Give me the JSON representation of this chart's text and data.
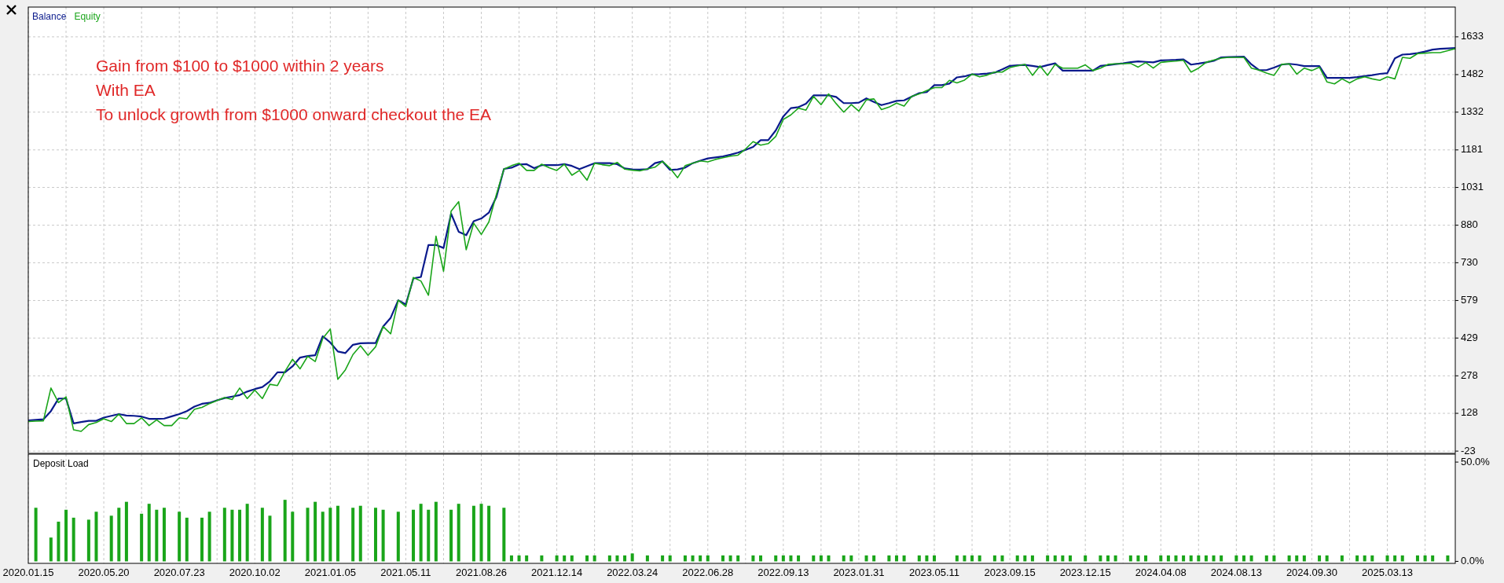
{
  "chart_data": [
    {
      "type": "line",
      "legend": "top left",
      "grid": true,
      "tick_labels": "y",
      "annotations": [
        "Gain from $100 to $1000 within 2 years",
        "With EA",
        "To unlock growth from $1000 onward checkout the EA"
      ],
      "categories": [
        "2020.01.15",
        null,
        null,
        null,
        null,
        null,
        null,
        null,
        null,
        null,
        "2020.05.20",
        null,
        null,
        null,
        null,
        null,
        null,
        null,
        null,
        null,
        "2020.07.23",
        null,
        null,
        null,
        null,
        null,
        null,
        null,
        null,
        null,
        "2020.10.02",
        null,
        null,
        null,
        null,
        null,
        null,
        null,
        null,
        null,
        "2021.01.05",
        null,
        null,
        null,
        null,
        null,
        null,
        null,
        null,
        null,
        "2021.05.11",
        null,
        null,
        null,
        null,
        null,
        null,
        null,
        null,
        null,
        "2021.08.26",
        null,
        null,
        null,
        null,
        null,
        null,
        null,
        null,
        null,
        "2021.12.14",
        null,
        null,
        null,
        null,
        null,
        null,
        null,
        null,
        null,
        "2022.03.24",
        null,
        null,
        null,
        null,
        null,
        null,
        null,
        null,
        null,
        "2022.06.28",
        null,
        null,
        null,
        null,
        null,
        null,
        null,
        null,
        null,
        "2022.09.13",
        null,
        null,
        null,
        null,
        null,
        null,
        null,
        null,
        null,
        "2023.01.31",
        null,
        null,
        null,
        null,
        null,
        null,
        null,
        null,
        null,
        "2023.05.11",
        null,
        null,
        null,
        null,
        null,
        null,
        null,
        null,
        null,
        "2023.09.15",
        null,
        null,
        null,
        null,
        null,
        null,
        null,
        null,
        null,
        "2023.12.15",
        null,
        null,
        null,
        null,
        null,
        null,
        null,
        null,
        null,
        "2024.04.08",
        null,
        null,
        null,
        null,
        null,
        null,
        null,
        null,
        null,
        "2024.08.13",
        null,
        null,
        null,
        null,
        null,
        null,
        null,
        null,
        null,
        "2024.09.30",
        null,
        null,
        null,
        null,
        null,
        null,
        null,
        null,
        null,
        "2025.03.13",
        null,
        null,
        null,
        null,
        null,
        null,
        null,
        null,
        null
      ],
      "ylim": [
        -32,
        1752
      ],
      "yticks": [
        -23,
        128,
        278,
        429,
        579,
        730,
        880,
        1031,
        1181,
        1332,
        1482,
        1633
      ],
      "series": [
        {
          "name": "Equity",
          "color": "#1aa51a",
          "values": [
            95,
            97,
            98,
            229,
            171,
            194,
            62,
            56,
            83,
            91,
            106,
            95,
            125,
            87,
            87,
            110,
            79,
            102,
            79,
            79,
            110,
            106,
            144,
            152,
            167,
            179,
            191,
            183,
            229,
            187,
            221,
            187,
            244,
            239,
            296,
            344,
            306,
            356,
            335,
            427,
            465,
            264,
            302,
            363,
            398,
            360,
            394,
            475,
            446,
            580,
            555,
            671,
            657,
            600,
            836,
            696,
            936,
            974,
            782,
            888,
            843,
            893,
            1003,
            1104,
            1118,
            1128,
            1099,
            1099,
            1124,
            1110,
            1099,
            1124,
            1080,
            1099,
            1060,
            1128,
            1122,
            1118,
            1131,
            1104,
            1100,
            1097,
            1105,
            1112,
            1135,
            1108,
            1070,
            1118,
            1128,
            1137,
            1133,
            1143,
            1150,
            1156,
            1160,
            1185,
            1214,
            1200,
            1206,
            1235,
            1303,
            1321,
            1348,
            1340,
            1395,
            1362,
            1405,
            1366,
            1332,
            1362,
            1336,
            1381,
            1385,
            1342,
            1352,
            1368,
            1356,
            1395,
            1405,
            1418,
            1430,
            1430,
            1459,
            1449,
            1460,
            1484,
            1473,
            1480,
            1492,
            1492,
            1510,
            1517,
            1523,
            1479,
            1517,
            1479,
            1523,
            1508,
            1508,
            1508,
            1521,
            1498,
            1508,
            1523,
            1525,
            1526,
            1527,
            1512,
            1530,
            1508,
            1531,
            1534,
            1536,
            1539,
            1492,
            1508,
            1531,
            1540,
            1548,
            1551,
            1551,
            1551,
            1508,
            1500,
            1488,
            1479,
            1523,
            1525,
            1484,
            1508,
            1498,
            1512,
            1453,
            1445,
            1465,
            1449,
            1465,
            1473,
            1465,
            1459,
            1473,
            1465,
            1551,
            1547,
            1566,
            1568,
            1570,
            1570,
            1578,
            1586
          ]
        },
        {
          "name": "Balance",
          "color": "#0a1a8c",
          "values": [
            100,
            102,
            104,
            137,
            187,
            187,
            88,
            93,
            98,
            98,
            111,
            118,
            125,
            119,
            118,
            115,
            106,
            106,
            107,
            116,
            125,
            137,
            155,
            166,
            170,
            180,
            189,
            195,
            201,
            215,
            225,
            233,
            256,
            292,
            292,
            316,
            351,
            357,
            360,
            436,
            411,
            375,
            369,
            402,
            408,
            409,
            409,
            475,
            510,
            580,
            563,
            667,
            673,
            801,
            801,
            789,
            926,
            854,
            840,
            896,
            907,
            930,
            993,
            1105,
            1110,
            1123,
            1124,
            1108,
            1120,
            1120,
            1120,
            1124,
            1117,
            1104,
            1116,
            1128,
            1128,
            1128,
            1124,
            1107,
            1103,
            1102,
            1104,
            1128,
            1135,
            1101,
            1103,
            1110,
            1128,
            1138,
            1147,
            1151,
            1155,
            1162,
            1170,
            1181,
            1193,
            1220,
            1220,
            1259,
            1315,
            1348,
            1352,
            1366,
            1399,
            1399,
            1399,
            1393,
            1368,
            1368,
            1370,
            1387,
            1373,
            1360,
            1368,
            1377,
            1379,
            1394,
            1408,
            1412,
            1440,
            1440,
            1446,
            1471,
            1475,
            1483,
            1484,
            1486,
            1490,
            1503,
            1517,
            1519,
            1521,
            1517,
            1512,
            1520,
            1527,
            1498,
            1498,
            1498,
            1498,
            1498,
            1517,
            1520,
            1524,
            1527,
            1532,
            1535,
            1533,
            1531,
            1539,
            1540,
            1541,
            1543,
            1522,
            1526,
            1531,
            1537,
            1551,
            1552,
            1553,
            1554,
            1523,
            1500,
            1500,
            1510,
            1522,
            1525,
            1522,
            1516,
            1516,
            1516,
            1469,
            1469,
            1469,
            1469,
            1472,
            1476,
            1480,
            1485,
            1488,
            1547,
            1562,
            1564,
            1568,
            1574,
            1582,
            1585,
            1587,
            1588
          ]
        }
      ]
    },
    {
      "type": "bar",
      "title": "Deposit Load",
      "grid": "x",
      "color": "#1aa51a",
      "categories": [
        "2020.01.15",
        null,
        null,
        null,
        null,
        null,
        null,
        null,
        null,
        null,
        "2020.05.20",
        null,
        null,
        null,
        null,
        null,
        null,
        null,
        null,
        null,
        "2020.07.23",
        null,
        null,
        null,
        null,
        null,
        null,
        null,
        null,
        null,
        "2020.10.02",
        null,
        null,
        null,
        null,
        null,
        null,
        null,
        null,
        null,
        "2021.01.05",
        null,
        null,
        null,
        null,
        null,
        null,
        null,
        null,
        null,
        "2021.05.11",
        null,
        null,
        null,
        null,
        null,
        null,
        null,
        null,
        null,
        "2021.08.26",
        null,
        null,
        null,
        null,
        null,
        null,
        null,
        null,
        null,
        "2021.12.14",
        null,
        null,
        null,
        null,
        null,
        null,
        null,
        null,
        null,
        "2022.03.24",
        null,
        null,
        null,
        null,
        null,
        null,
        null,
        null,
        null,
        "2022.06.28",
        null,
        null,
        null,
        null,
        null,
        null,
        null,
        null,
        null,
        "2022.09.13",
        null,
        null,
        null,
        null,
        null,
        null,
        null,
        null,
        null,
        "2023.01.31",
        null,
        null,
        null,
        null,
        null,
        null,
        null,
        null,
        null,
        "2023.05.11",
        null,
        null,
        null,
        null,
        null,
        null,
        null,
        null,
        null,
        "2023.09.15",
        null,
        null,
        null,
        null,
        null,
        null,
        null,
        null,
        null,
        "2023.12.15",
        null,
        null,
        null,
        null,
        null,
        null,
        null,
        null,
        null,
        "2024.04.08",
        null,
        null,
        null,
        null,
        null,
        null,
        null,
        null,
        null,
        "2024.08.13",
        null,
        null,
        null,
        null,
        null,
        null,
        null,
        null,
        null,
        "2024.09.30",
        null,
        null,
        null,
        null,
        null,
        null,
        null,
        null,
        null,
        "2025.03.13",
        null,
        null,
        null,
        null,
        null,
        null,
        null,
        null,
        null
      ],
      "ylim": [
        -1,
        54
      ],
      "yticks": [
        {
          "value": 0,
          "label": "0.0%"
        },
        {
          "value": 50,
          "label": "50.0%"
        }
      ],
      "values": [
        null,
        27,
        null,
        12,
        20,
        26,
        22,
        null,
        21,
        25,
        null,
        23,
        27,
        30,
        null,
        24,
        29,
        26,
        27,
        null,
        25,
        22,
        null,
        22,
        25,
        null,
        27,
        26,
        26,
        29,
        null,
        27,
        23,
        null,
        31,
        25,
        null,
        27,
        30,
        25,
        27,
        28,
        null,
        27,
        28,
        null,
        27,
        26,
        null,
        25,
        null,
        26,
        29,
        26,
        30,
        null,
        26,
        29,
        null,
        28,
        29,
        28,
        null,
        27,
        3,
        3,
        3,
        null,
        3,
        null,
        3,
        3,
        3,
        null,
        3,
        3,
        null,
        3,
        3,
        3,
        4,
        null,
        3,
        null,
        3,
        3,
        null,
        3,
        3,
        3,
        3,
        null,
        3,
        3,
        3,
        null,
        3,
        3,
        null,
        3,
        3,
        3,
        3,
        null,
        3,
        3,
        3,
        null,
        3,
        3,
        null,
        3,
        3,
        null,
        3,
        3,
        3,
        null,
        3,
        3,
        3,
        null,
        null,
        3,
        3,
        3,
        3,
        null,
        3,
        3,
        null,
        3,
        3,
        3,
        null,
        3,
        3,
        3,
        3,
        null,
        3,
        null,
        3,
        3,
        3,
        null,
        3,
        3,
        3,
        null,
        3,
        3,
        3,
        3,
        3,
        3,
        3,
        3,
        3,
        null,
        3,
        3,
        3,
        null,
        3,
        3,
        null,
        3,
        3,
        3,
        null,
        3,
        3,
        null,
        3,
        null,
        3,
        3,
        3,
        null,
        3,
        3,
        3,
        null,
        3,
        3,
        3,
        null,
        3,
        null
      ]
    }
  ]
}
